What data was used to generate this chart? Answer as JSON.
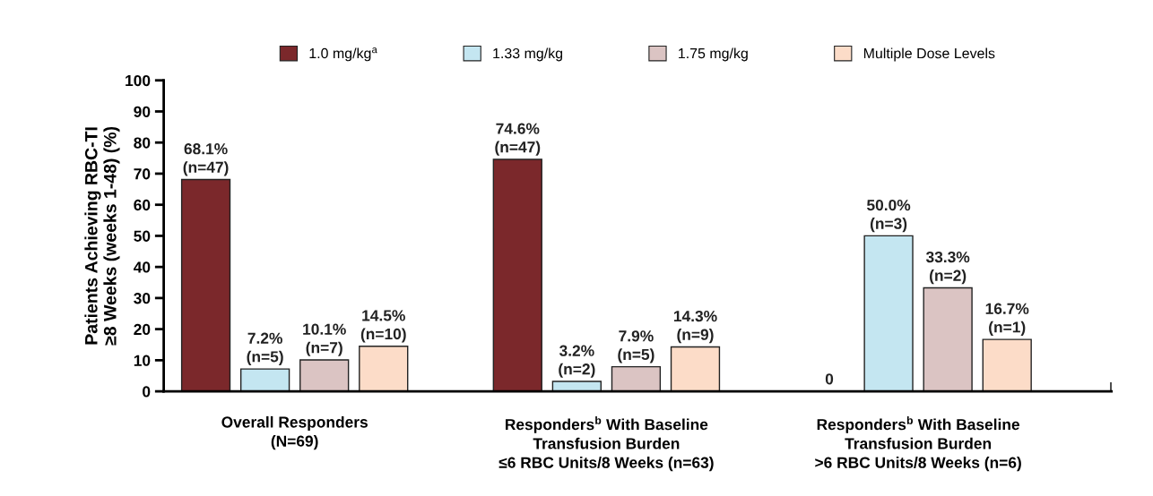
{
  "chart_data": {
    "type": "bar",
    "ylabel": "Patients Achieving RBC-TI\n≥8 Weeks (weeks 1-48) (%)",
    "categories": [
      "Overall Responders\n(N=69)",
      "Responders$^{b}$ With Baseline\nTransfusion Burden\n≤6 RBC Units/8 Weeks (n=63)",
      "Responders$^{b}$ With Baseline\nTransfusion Burden\n>6 RBC Units/8 Weeks (n=6)"
    ],
    "series": [
      {
        "name": "1.0 mg/kg$^{a}$",
        "color": "#7b282b",
        "values": [
          68.1,
          74.6,
          0
        ],
        "value_labels": [
          "68.1%\n(n=47)",
          "74.6%\n(n=47)",
          "0"
        ]
      },
      {
        "name": "1.33 mg/kg",
        "color": "#c4e6f1",
        "values": [
          7.2,
          3.2,
          50.0
        ],
        "value_labels": [
          "7.2%\n(n=5)",
          "3.2%\n(n=2)",
          "50.0%\n(n=3)"
        ]
      },
      {
        "name": "1.75 mg/kg",
        "color": "#dbc4c3",
        "values": [
          10.1,
          7.9,
          33.3
        ],
        "value_labels": [
          "10.1%\n(n=7)",
          "7.9%\n(n=5)",
          "33.3%\n(n=2)"
        ]
      },
      {
        "name": "Multiple Dose Levels",
        "color": "#fcdcc8",
        "values": [
          14.5,
          14.3,
          16.7
        ],
        "value_labels": [
          "14.5%\n(n=10)",
          "14.3%\n(n=9)",
          "16.7%\n(n=1)"
        ]
      }
    ],
    "ylim": [
      0,
      100
    ],
    "yticks": [
      0,
      10,
      20,
      30,
      40,
      50,
      60,
      70,
      80,
      90,
      100
    ],
    "grid": false,
    "legend": "top"
  }
}
